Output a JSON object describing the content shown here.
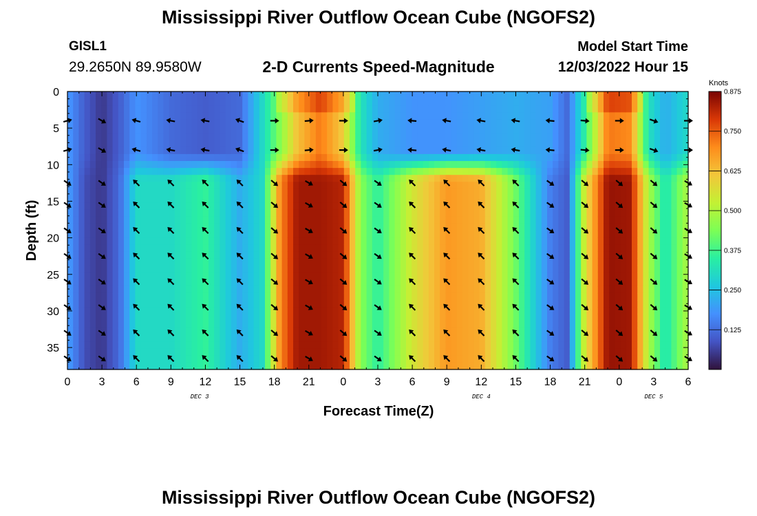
{
  "header": {
    "title": "Mississippi River Outflow Ocean Cube (NGOFS2)",
    "station": "GISL1",
    "coords": "29.2650N  89.9580W",
    "subtitle": "2-D Currents Speed-Magnitude",
    "model_start_label": "Model Start Time",
    "model_start_value": "12/03/2022 Hour 15"
  },
  "footer": {
    "title": "Mississippi River Outflow Ocean Cube (NGOFS2)"
  },
  "chart_data": {
    "type": "heatmap",
    "title": "2-D Currents Speed-Magnitude",
    "xlabel": "Forecast Time(Z)",
    "ylabel": "Depth (ft)",
    "xlim": [
      0,
      54
    ],
    "ylim": [
      38,
      0
    ],
    "x_tick_values": [
      0,
      3,
      6,
      9,
      12,
      15,
      18,
      21,
      24,
      27,
      30,
      33,
      36,
      39,
      42,
      45,
      48,
      51,
      54
    ],
    "x_tick_labels": [
      "0",
      "3",
      "6",
      "9",
      "12",
      "15",
      "18",
      "21",
      "0",
      "3",
      "6",
      "9",
      "12",
      "15",
      "18",
      "21",
      "0",
      "3",
      "6"
    ],
    "y_tick_values": [
      0,
      5,
      10,
      15,
      20,
      25,
      30,
      35
    ],
    "y_tick_labels": [
      "0",
      "5",
      "10",
      "15",
      "20",
      "25",
      "30",
      "35"
    ],
    "date_labels": [
      {
        "text": "DEC 3",
        "x": 11.5
      },
      {
        "text": "DEC 4",
        "x": 36.0
      },
      {
        "text": "DEC 5",
        "x": 51.0
      }
    ],
    "colorbar": {
      "label": "Knots",
      "min": 0.0,
      "max": 0.875,
      "ticks": [
        0.125,
        0.25,
        0.375,
        0.5,
        0.625,
        0.75,
        0.875
      ],
      "tick_labels": [
        "0.125",
        "0.250",
        "0.375",
        "0.500",
        "0.625",
        "0.750",
        "0.875"
      ]
    },
    "speed_field": {
      "description": "Approximate current speed (knots) at sample times (hours since 12/03 00Z) for the upper layer (0-9 ft) and lower layer (10-38 ft)",
      "times": [
        0,
        1.5,
        3,
        4.5,
        6,
        9,
        12,
        15,
        17,
        18.5,
        20,
        22,
        24,
        25.5,
        27,
        30,
        33,
        36,
        39,
        42,
        43.5,
        45,
        47,
        49,
        50.5,
        52,
        54
      ],
      "upper_layer": [
        0.19,
        0.1,
        0.05,
        0.1,
        0.18,
        0.12,
        0.1,
        0.12,
        0.3,
        0.45,
        0.62,
        0.72,
        0.6,
        0.32,
        0.22,
        0.18,
        0.18,
        0.2,
        0.22,
        0.2,
        0.12,
        0.35,
        0.72,
        0.7,
        0.32,
        0.22,
        0.3
      ],
      "lower_layer": [
        0.2,
        0.08,
        0.05,
        0.12,
        0.3,
        0.3,
        0.36,
        0.22,
        0.3,
        0.7,
        0.84,
        0.84,
        0.82,
        0.45,
        0.35,
        0.55,
        0.68,
        0.65,
        0.42,
        0.15,
        0.1,
        0.55,
        0.85,
        0.84,
        0.5,
        0.32,
        0.5
      ]
    },
    "vectors": {
      "description": "Current direction arrows (degrees clockwise from east, screen orientation)",
      "times": [
        0,
        3,
        6,
        9,
        12,
        15,
        18,
        21,
        24,
        27,
        30,
        33,
        36,
        39,
        42,
        45,
        48,
        51,
        54
      ],
      "depths": [
        4,
        8,
        12.5,
        15.5,
        19,
        22.5,
        26,
        29.5,
        33,
        36.5
      ],
      "upper_angles": [
        -15,
        30,
        195,
        190,
        190,
        200,
        0,
        -5,
        0,
        -10,
        185,
        190,
        190,
        190,
        185,
        5,
        0,
        20,
        0
      ],
      "lower_angles": [
        35,
        35,
        225,
        225,
        225,
        225,
        40,
        30,
        40,
        35,
        225,
        225,
        225,
        225,
        35,
        40,
        40,
        40,
        30
      ]
    }
  }
}
